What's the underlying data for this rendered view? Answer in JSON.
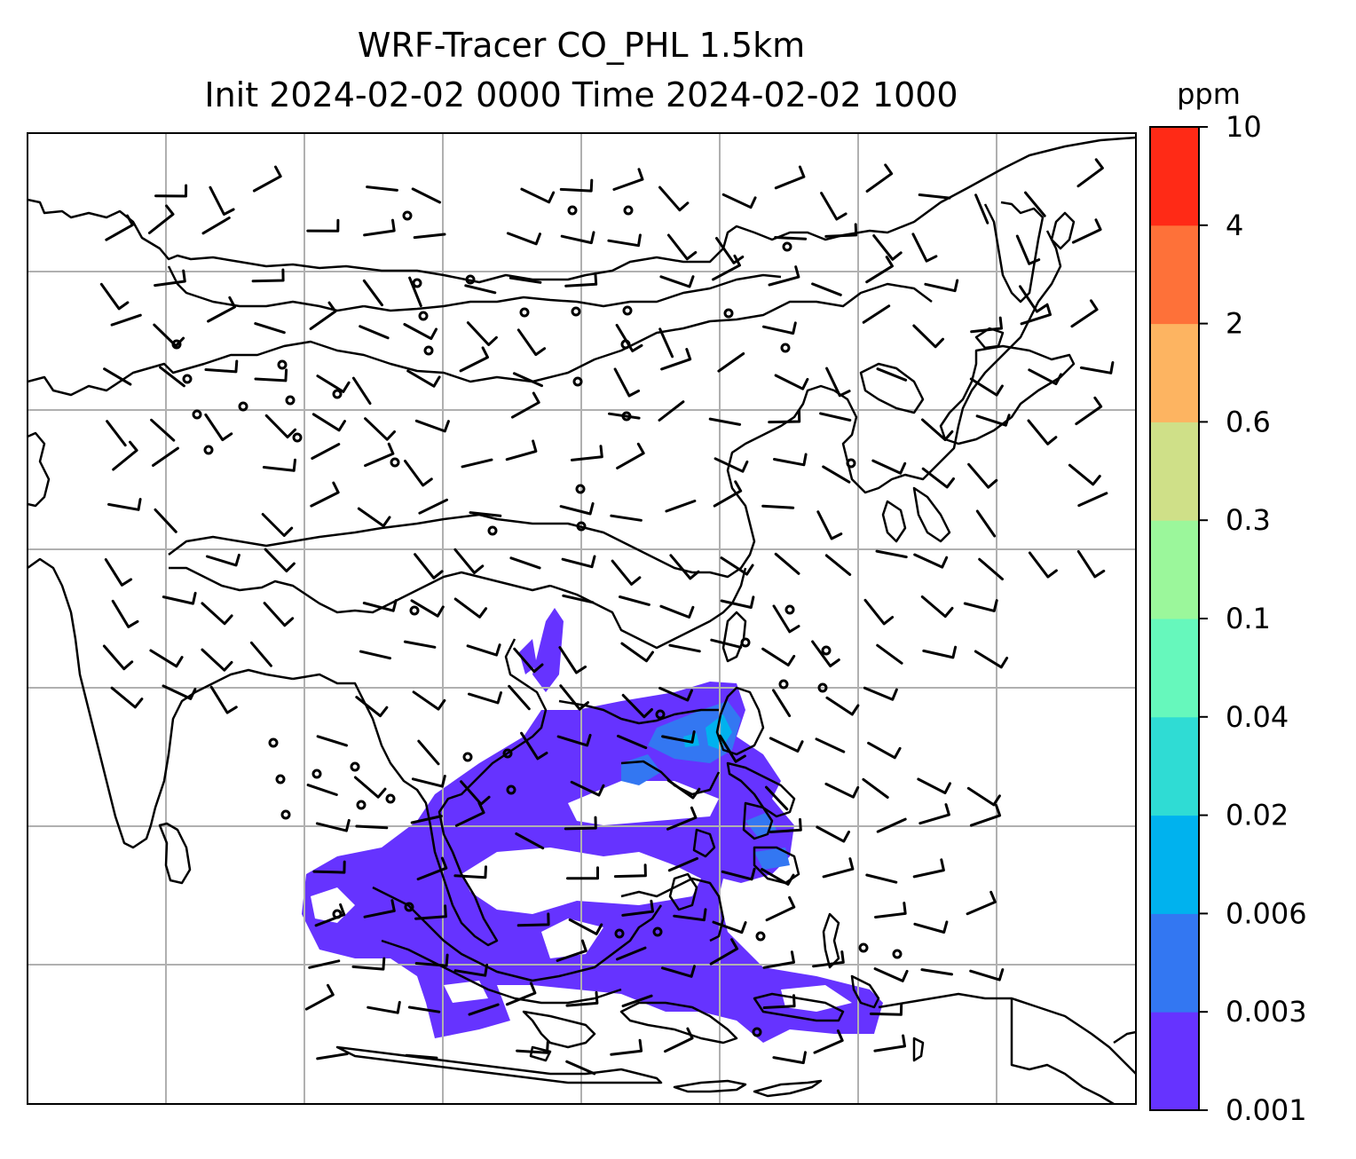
{
  "title": {
    "line1": "WRF-Tracer CO_PHL 1.5km",
    "line2": "Init 2024-02-02 0000 Time 2024-02-02 1000"
  },
  "colorbar": {
    "unit": "ppm",
    "ticks": [
      "0.001",
      "0.003",
      "0.006",
      "0.02",
      "0.04",
      "0.1",
      "0.3",
      "0.6",
      "2",
      "4",
      "10"
    ],
    "colors": [
      "#6633ff",
      "#3377f2",
      "#00b2ee",
      "#2fdcd4",
      "#66f8bc",
      "#9bf79b",
      "#cfe088",
      "#fdb461",
      "#fe7139",
      "#ff2a16"
    ]
  },
  "map": {
    "gridlines": true,
    "tracer_fill_color": "#6633ff",
    "tracer_high_color": "#3377f2",
    "coastline_color": "#000000"
  }
}
